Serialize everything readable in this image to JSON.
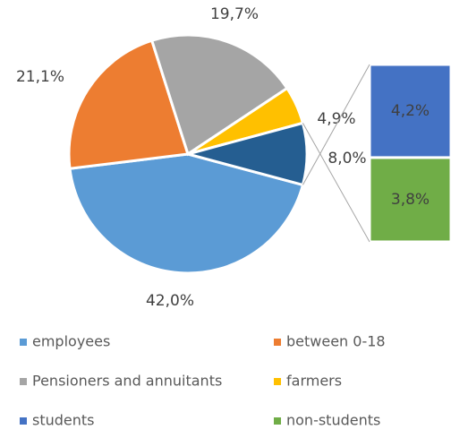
{
  "chart_data": {
    "type": "pie_of_bar",
    "slices": [
      {
        "name": "employees",
        "color": "#5b9bd5",
        "value": 42.0,
        "value_label": "42,0%"
      },
      {
        "name": "between 0-18",
        "color": "#ed7d31",
        "value": 21.1,
        "value_label": "21,1%"
      },
      {
        "name": "Pensioners and annuitants",
        "color": "#a5a5a5",
        "value": 19.7,
        "value_label": "19,7%"
      },
      {
        "name": "farmers",
        "color": "#ffc000",
        "value": 4.9,
        "value_label": "4,9%"
      },
      {
        "name": null,
        "color": "#255e91",
        "value": 8.0,
        "value_label": "8,0%"
      }
    ],
    "bar": [
      {
        "name": "students",
        "color": "#4472c4",
        "value": 4.2,
        "value_label": "4,2%"
      },
      {
        "name": "non-students",
        "color": "#70ad47",
        "value": 3.8,
        "value_label": "3,8%"
      }
    ],
    "legend_position": "bottom"
  }
}
